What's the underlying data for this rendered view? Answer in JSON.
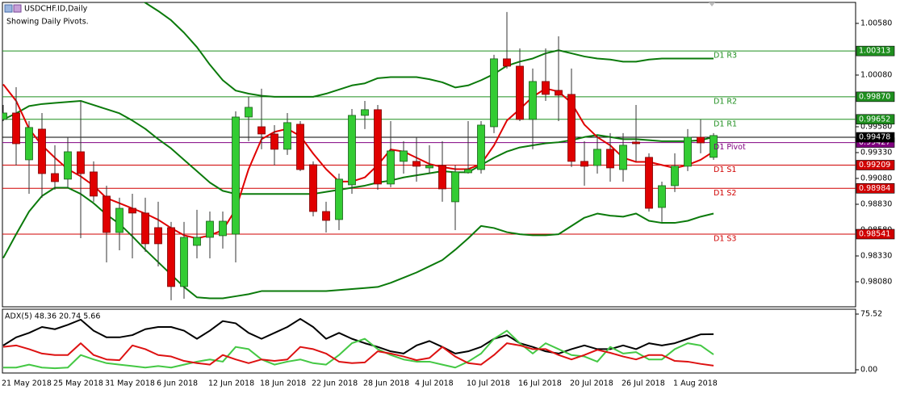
{
  "chart_data": [
    {
      "type": "candlestick",
      "title": "USDCHF.ID,Daily",
      "subtitle": "Showing Daily Pivots.",
      "categories": [
        "21 May 2018",
        null,
        null,
        null,
        "25 May 2018",
        null,
        null,
        null,
        "31 May 2018",
        null,
        null,
        null,
        "6 Jun 2018",
        null,
        null,
        null,
        "12 Jun 2018",
        null,
        null,
        null,
        "18 Jun 2018",
        null,
        null,
        null,
        "22 Jun 2018",
        null,
        null,
        null,
        "28 Jun 2018",
        null,
        null,
        null,
        "4 Jul 2018",
        null,
        null,
        null,
        "10 Jul 2018",
        null,
        null,
        null,
        "16 Jul 2018",
        null,
        null,
        null,
        "20 Jul 2018",
        null,
        null,
        null,
        "26 Jul 2018",
        null,
        null,
        null,
        "1 Aug 2018",
        null,
        null,
        null
      ],
      "open": [
        0.99651,
        0.99713,
        0.9926,
        0.99557,
        0.99127,
        0.99073,
        0.99338,
        0.99143,
        0.98909,
        0.98557,
        0.98791,
        0.98745,
        0.98604,
        0.98604,
        0.98034,
        0.98432,
        0.9851,
        0.98526,
        0.98541,
        0.99674,
        0.9958,
        0.9951,
        0.99362,
        0.99604,
        0.99213,
        0.9876,
        0.98682,
        0.99018,
        0.9969,
        0.99745,
        0.99026,
        0.99245,
        0.99245,
        0.99182,
        0.99205,
        0.98854,
        0.99135,
        0.99166,
        0.9958,
        1.00237,
        1.00166,
        0.99651,
        1.00018,
        0.99932,
        0.99893,
        0.99245,
        0.99205,
        0.99362,
        0.99166,
        0.99432,
        0.99284,
        0.98799,
        0.9901,
        0.99198,
        0.99479,
        0.99284
      ],
      "high": [
        0.99791,
        0.99963,
        0.99635,
        0.99713,
        0.99401,
        0.99479,
        0.9983,
        0.99245,
        0.9901,
        0.98893,
        0.98932,
        0.98893,
        0.98854,
        0.98659,
        0.98659,
        0.98776,
        0.9876,
        0.9876,
        0.99729,
        0.9987,
        0.99948,
        0.99596,
        0.99713,
        0.99635,
        0.99245,
        0.98854,
        0.99127,
        0.99752,
        0.9983,
        0.99791,
        0.99635,
        0.9944,
        0.99479,
        0.99401,
        0.9944,
        0.99205,
        0.99635,
        0.99635,
        1.00276,
        1.0069,
        1.00338,
        1.00143,
        1.00338,
        1.00455,
        1.00143,
        0.9944,
        0.99495,
        0.99518,
        0.99518,
        0.99791,
        0.99323,
        0.99049,
        0.99323,
        0.99557,
        0.99651,
        0.99518
      ],
      "low": [
        0.99635,
        0.99205,
        0.98932,
        0.98893,
        0.98971,
        0.98995,
        0.98502,
        0.98854,
        0.98268,
        0.98385,
        0.98307,
        0.9837,
        0.98229,
        0.97901,
        0.97916,
        0.98307,
        0.98307,
        0.98401,
        0.98268,
        0.9944,
        0.99362,
        0.99205,
        0.99307,
        0.99151,
        0.98713,
        0.98557,
        0.9858,
        0.98932,
        0.99557,
        0.98971,
        0.98995,
        0.99127,
        0.99049,
        0.99127,
        0.98854,
        0.9858,
        0.99127,
        0.99127,
        0.99518,
        1.00143,
        0.99635,
        0.99362,
        0.9983,
        0.99635,
        0.9919,
        0.9901,
        0.99127,
        0.99049,
        0.99049,
        0.99245,
        0.9876,
        0.98659,
        0.98948,
        0.99151,
        0.99323,
        0.9926
      ],
      "close": [
        0.99713,
        0.99416,
        0.99573,
        0.99127,
        0.99049,
        0.99338,
        0.99127,
        0.98909,
        0.98557,
        0.98791,
        0.98745,
        0.98448,
        0.98448,
        0.98034,
        0.9851,
        0.9851,
        0.98666,
        0.98666,
        0.99674,
        0.99768,
        0.9951,
        0.99362,
        0.9962,
        0.99166,
        0.9876,
        0.98674,
        0.99073,
        0.9969,
        0.99745,
        0.99026,
        0.99346,
        0.99346,
        0.99198,
        0.99205,
        0.98979,
        0.99143,
        0.99166,
        0.99596,
        1.00237,
        1.00166,
        0.99651,
        1.00018,
        0.99893,
        0.99885,
        0.99245,
        0.99198,
        0.99362,
        0.99182,
        0.99401,
        0.99416,
        0.98791,
        0.9901,
        0.99198,
        0.99479,
        0.99424,
        0.99495
      ],
      "up_color": "#33cc33",
      "down_color": "#e00000",
      "overlays": [
        {
          "color": "#0b7a0b",
          "values": [
            1.0104,
            1.01,
            1.0096,
            1.0092,
            1.009,
            1.009,
            1.0092,
            1.0093,
            1.0092,
            1.0089,
            1.0085,
            1.0078,
            1.007,
            1.0061,
            1.0049,
            1.0035,
            1.0018,
            1.0003,
            0.9993,
            0.999,
            0.9988,
            0.9987,
            0.9987,
            0.9987,
            0.9987,
            0.999,
            0.9994,
            0.9998,
            1.0,
            1.0005,
            1.0006,
            1.0006,
            1.0006,
            1.0004,
            1.0001,
            0.9996,
            0.9998,
            1.0003,
            1.0009,
            1.0017,
            1.0021,
            1.0024,
            1.0029,
            1.0032,
            1.0029,
            1.0026,
            1.0024,
            1.0023,
            1.0021,
            1.0021,
            1.0023,
            1.0024,
            1.0024,
            1.0024,
            1.0024,
            1.0024
          ]
        },
        {
          "color": "#0b7a0b",
          "values": [
            0.9965,
            0.9971,
            0.9978,
            0.998,
            0.9981,
            0.9982,
            0.9983,
            0.9979,
            0.9975,
            0.9971,
            0.9964,
            0.9956,
            0.9946,
            0.9937,
            0.9926,
            0.9915,
            0.9904,
            0.9896,
            0.9893,
            0.9893,
            0.9893,
            0.9893,
            0.9893,
            0.9893,
            0.9893,
            0.9895,
            0.9897,
            0.9899,
            0.9901,
            0.9904,
            0.9906,
            0.9909,
            0.9911,
            0.9913,
            0.9915,
            0.9914,
            0.9914,
            0.9921,
            0.9928,
            0.9934,
            0.9938,
            0.994,
            0.9942,
            0.9943,
            0.9945,
            0.9948,
            0.995,
            0.9948,
            0.9946,
            0.9946,
            0.9945,
            0.9944,
            0.9944,
            0.9944,
            0.9945,
            0.9948
          ]
        },
        {
          "color": "#0b7a0b",
          "values": [
            0.9831,
            0.9854,
            0.9876,
            0.9891,
            0.9899,
            0.9899,
            0.9893,
            0.9884,
            0.9873,
            0.9864,
            0.9852,
            0.9839,
            0.9827,
            0.9815,
            0.9803,
            0.9793,
            0.9792,
            0.9792,
            0.9794,
            0.9796,
            0.9799,
            0.9799,
            0.9799,
            0.9799,
            0.9799,
            0.9799,
            0.98,
            0.9801,
            0.9802,
            0.9803,
            0.9807,
            0.9812,
            0.9817,
            0.9823,
            0.9829,
            0.9839,
            0.985,
            0.9862,
            0.986,
            0.9856,
            0.9854,
            0.9853,
            0.9853,
            0.9854,
            0.9862,
            0.987,
            0.9874,
            0.9872,
            0.9871,
            0.9874,
            0.9867,
            0.9865,
            0.9865,
            0.9867,
            0.9871,
            0.9874
          ]
        },
        {
          "color": "#e00000",
          "values": [
            0.9999,
            0.9983,
            0.9956,
            0.994,
            0.9928,
            0.9917,
            0.991,
            0.9901,
            0.9889,
            0.9884,
            0.9879,
            0.9874,
            0.9868,
            0.986,
            0.9853,
            0.985,
            0.9853,
            0.9858,
            0.9878,
            0.9917,
            0.9946,
            0.9953,
            0.9956,
            0.9949,
            0.9932,
            0.9917,
            0.9905,
            0.9905,
            0.9909,
            0.9921,
            0.9936,
            0.9934,
            0.9928,
            0.9922,
            0.9919,
            0.9917,
            0.9917,
            0.9922,
            0.994,
            0.9964,
            0.9975,
            0.9987,
            0.9995,
            0.9992,
            0.9981,
            0.996,
            0.9948,
            0.994,
            0.9928,
            0.9924,
            0.9924,
            0.9921,
            0.9918,
            0.9921,
            0.9926,
            0.9934
          ]
        }
      ],
      "levels": [
        {
          "name": "D1 R3",
          "value": 1.00313,
          "color": "#1f8f1f"
        },
        {
          "name": "D1 R2",
          "value": 0.9987,
          "value_label": "0.99870",
          "color": "#1f8f1f"
        },
        {
          "name": "D1 R1",
          "value": 0.99652,
          "color": "#1f8f1f"
        },
        {
          "name": "D1 Pivot",
          "value": 0.99427,
          "color": "#800080"
        },
        {
          "name": "D1 S1",
          "value": 0.99209,
          "color": "#d00000"
        },
        {
          "name": "D1 S2",
          "value": 0.98984,
          "color": "#d00000"
        },
        {
          "name": "D1 S3",
          "value": 0.98541,
          "color": "#d00000"
        }
      ],
      "bid": {
        "value": 0.99478,
        "color": "#000000"
      },
      "ylim": [
        0.97838,
        1.00775
      ],
      "yticks": [
        {
          "value": 0.9808,
          "label": "0.98080"
        },
        {
          "value": 0.9833,
          "label": "0.98330"
        },
        {
          "value": 0.9858,
          "label": "0.98580"
        },
        {
          "value": 0.9883,
          "label": "0.98830"
        },
        {
          "value": 0.9908,
          "label": "0.99080"
        },
        {
          "value": 0.9933,
          "label": "0.99330"
        },
        {
          "value": 0.9958,
          "label": "0.99580"
        },
        {
          "value": 1.0008,
          "label": "1.00080"
        },
        {
          "value": 1.0058,
          "label": "1.00580"
        }
      ],
      "grid": false
    },
    {
      "type": "line",
      "title": "ADX(5) 48.36 20.74 5.66",
      "series": [
        {
          "color": "#000000",
          "values": [
            33,
            44,
            50,
            58,
            55,
            61,
            68,
            53,
            44,
            44,
            47,
            55,
            58,
            58,
            53,
            42,
            53,
            66,
            63,
            50,
            42,
            50,
            58,
            69,
            58,
            42,
            50,
            42,
            36,
            31,
            25,
            22,
            33,
            39,
            31,
            22,
            25,
            31,
            42,
            47,
            36,
            31,
            25,
            22,
            28,
            33,
            28,
            28,
            33,
            28,
            36,
            33,
            36,
            42,
            48,
            48.36
          ]
        },
        {
          "color": "#44c844",
          "values": [
            3,
            3,
            7,
            3,
            2,
            3,
            20,
            14,
            9,
            7,
            5,
            3,
            5,
            3,
            7,
            11,
            14,
            11,
            31,
            28,
            14,
            7,
            11,
            14,
            9,
            7,
            20,
            36,
            42,
            28,
            20,
            14,
            11,
            11,
            7,
            3,
            11,
            22,
            42,
            53,
            36,
            22,
            36,
            28,
            20,
            18,
            11,
            31,
            22,
            24,
            14,
            14,
            28,
            36,
            33,
            20.74
          ]
        },
        {
          "color": "#dd1111",
          "values": [
            31,
            33,
            28,
            22,
            20,
            20,
            36,
            20,
            14,
            13,
            33,
            28,
            20,
            18,
            12,
            9,
            7,
            20,
            14,
            9,
            14,
            12,
            14,
            31,
            28,
            22,
            11,
            9,
            10,
            25,
            22,
            18,
            13,
            16,
            31,
            18,
            9,
            7,
            20,
            36,
            33,
            28,
            28,
            20,
            14,
            20,
            27,
            23,
            18,
            14,
            20,
            20,
            12,
            11,
            8,
            5.66
          ]
        }
      ],
      "ylim": [
        0,
        75.52
      ],
      "yticks": [
        75.52,
        {
          "value": 0,
          "label": "0.00"
        }
      ],
      "grid": false
    }
  ]
}
